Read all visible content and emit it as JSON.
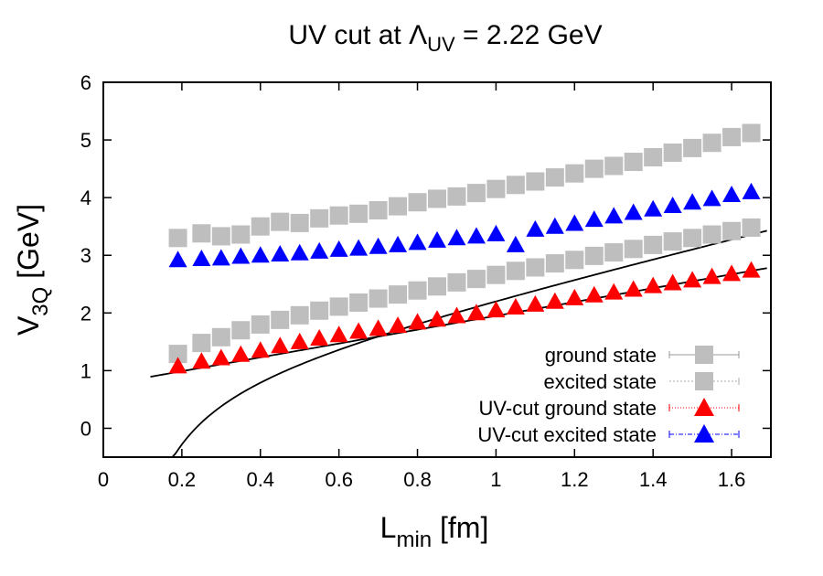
{
  "chart_data": {
    "type": "scatter",
    "title": {
      "prefix": "UV cut at ",
      "symbol": "Λ",
      "symbol_sub": "UV",
      "suffix": " = 2.22 GeV"
    },
    "xlabel": {
      "main": "L",
      "sub": "min",
      "unit": " [fm]"
    },
    "ylabel": {
      "main": "V",
      "sub": "3Q",
      "unit": " [GeV]"
    },
    "xlim": [
      0,
      1.7
    ],
    "ylim": [
      -0.5,
      6
    ],
    "xticks": [
      "0",
      "0.2",
      "0.4",
      "0.6",
      "0.8",
      "1",
      "1.2",
      "1.4",
      "1.6"
    ],
    "yticks": [
      "0",
      "1",
      "2",
      "3",
      "4",
      "5",
      "6"
    ],
    "grid": false,
    "legend_position": "bottom-right",
    "series": [
      {
        "name": "ground state",
        "marker": "square",
        "color": "#bebebe",
        "errcolor": "#999999",
        "points": [
          [
            0.19,
            1.29
          ],
          [
            0.25,
            1.48
          ],
          [
            0.3,
            1.58
          ],
          [
            0.35,
            1.7
          ],
          [
            0.4,
            1.8
          ],
          [
            0.45,
            1.88
          ],
          [
            0.5,
            1.96
          ],
          [
            0.55,
            2.04
          ],
          [
            0.6,
            2.11
          ],
          [
            0.65,
            2.18
          ],
          [
            0.7,
            2.25
          ],
          [
            0.75,
            2.32
          ],
          [
            0.8,
            2.39
          ],
          [
            0.85,
            2.46
          ],
          [
            0.9,
            2.53
          ],
          [
            0.95,
            2.59
          ],
          [
            1.0,
            2.66
          ],
          [
            1.05,
            2.73
          ],
          [
            1.1,
            2.79
          ],
          [
            1.15,
            2.86
          ],
          [
            1.2,
            2.92
          ],
          [
            1.25,
            2.99
          ],
          [
            1.3,
            3.05
          ],
          [
            1.35,
            3.11
          ],
          [
            1.4,
            3.18
          ],
          [
            1.45,
            3.24
          ],
          [
            1.5,
            3.3
          ],
          [
            1.55,
            3.36
          ],
          [
            1.6,
            3.42
          ],
          [
            1.65,
            3.48
          ]
        ]
      },
      {
        "name": "excited state",
        "marker": "square",
        "color": "#bebebe",
        "errcolor": "#aaaaaa",
        "points": [
          [
            0.19,
            3.3
          ],
          [
            0.25,
            3.38
          ],
          [
            0.3,
            3.33
          ],
          [
            0.35,
            3.36
          ],
          [
            0.4,
            3.5
          ],
          [
            0.45,
            3.58
          ],
          [
            0.5,
            3.56
          ],
          [
            0.55,
            3.64
          ],
          [
            0.6,
            3.69
          ],
          [
            0.65,
            3.72
          ],
          [
            0.7,
            3.78
          ],
          [
            0.75,
            3.85
          ],
          [
            0.8,
            3.92
          ],
          [
            0.85,
            3.98
          ],
          [
            0.9,
            4.02
          ],
          [
            0.95,
            4.08
          ],
          [
            1.0,
            4.15
          ],
          [
            1.05,
            4.22
          ],
          [
            1.1,
            4.28
          ],
          [
            1.15,
            4.35
          ],
          [
            1.2,
            4.42
          ],
          [
            1.25,
            4.5
          ],
          [
            1.3,
            4.55
          ],
          [
            1.35,
            4.62
          ],
          [
            1.4,
            4.7
          ],
          [
            1.45,
            4.78
          ],
          [
            1.5,
            4.86
          ],
          [
            1.55,
            4.95
          ],
          [
            1.6,
            5.05
          ],
          [
            1.65,
            5.12
          ]
        ]
      },
      {
        "name": "UV-cut ground state",
        "marker": "triangle",
        "color": "#ff0000",
        "errcolor": "#ff0000",
        "points": [
          [
            0.19,
            1.08
          ],
          [
            0.25,
            1.16
          ],
          [
            0.3,
            1.22
          ],
          [
            0.35,
            1.28
          ],
          [
            0.4,
            1.35
          ],
          [
            0.45,
            1.43
          ],
          [
            0.5,
            1.5
          ],
          [
            0.55,
            1.56
          ],
          [
            0.6,
            1.62
          ],
          [
            0.65,
            1.68
          ],
          [
            0.7,
            1.73
          ],
          [
            0.75,
            1.78
          ],
          [
            0.8,
            1.84
          ],
          [
            0.85,
            1.89
          ],
          [
            0.9,
            1.95
          ],
          [
            0.95,
            2.0
          ],
          [
            1.0,
            2.05
          ],
          [
            1.05,
            2.1
          ],
          [
            1.1,
            2.15
          ],
          [
            1.15,
            2.2
          ],
          [
            1.2,
            2.26
          ],
          [
            1.25,
            2.31
          ],
          [
            1.3,
            2.36
          ],
          [
            1.35,
            2.41
          ],
          [
            1.4,
            2.47
          ],
          [
            1.45,
            2.52
          ],
          [
            1.5,
            2.57
          ],
          [
            1.55,
            2.63
          ],
          [
            1.6,
            2.68
          ],
          [
            1.65,
            2.74
          ]
        ]
      },
      {
        "name": "UV-cut excited state",
        "marker": "triangle",
        "color": "#0000ff",
        "errcolor": "#0000ff",
        "points": [
          [
            0.19,
            2.92
          ],
          [
            0.25,
            2.94
          ],
          [
            0.3,
            2.95
          ],
          [
            0.35,
            2.98
          ],
          [
            0.4,
            3.0
          ],
          [
            0.45,
            3.02
          ],
          [
            0.5,
            3.04
          ],
          [
            0.55,
            3.07
          ],
          [
            0.6,
            3.1
          ],
          [
            0.65,
            3.12
          ],
          [
            0.7,
            3.15
          ],
          [
            0.75,
            3.18
          ],
          [
            0.8,
            3.22
          ],
          [
            0.85,
            3.26
          ],
          [
            0.9,
            3.3
          ],
          [
            0.95,
            3.33
          ],
          [
            1.0,
            3.37
          ],
          [
            1.05,
            3.18
          ],
          [
            1.1,
            3.45
          ],
          [
            1.15,
            3.5
          ],
          [
            1.2,
            3.55
          ],
          [
            1.25,
            3.62
          ],
          [
            1.3,
            3.68
          ],
          [
            1.35,
            3.74
          ],
          [
            1.4,
            3.8
          ],
          [
            1.45,
            3.86
          ],
          [
            1.5,
            3.92
          ],
          [
            1.55,
            3.98
          ],
          [
            1.6,
            4.05
          ],
          [
            1.65,
            4.1
          ]
        ]
      }
    ],
    "fit_curves": [
      {
        "sigma": 1.6,
        "A": 0.3,
        "C": 0.9,
        "x_start": 0.035,
        "x_end": 1.69,
        "color": "#000000"
      },
      {
        "sigma": 1.2,
        "A": 0.0,
        "C": 0.75,
        "x_start": 0.12,
        "x_end": 1.69,
        "color": "#000000"
      }
    ]
  }
}
